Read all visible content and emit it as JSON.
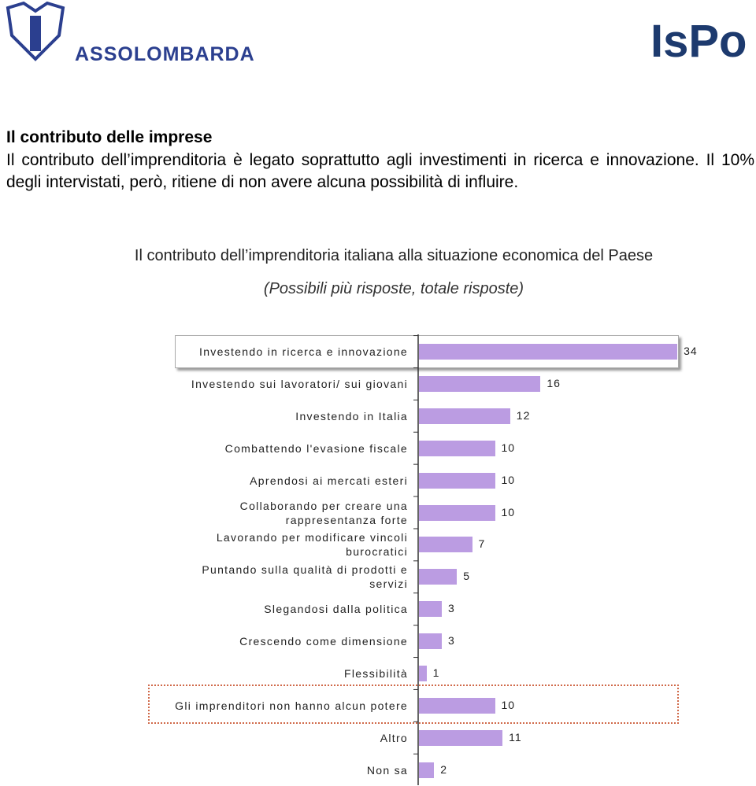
{
  "logos": {
    "left": "ASSOLOMBARDA",
    "right": "IsPo"
  },
  "section": {
    "title": "Il contributo delle imprese",
    "text": "Il contributo dell’imprenditoria è legato soprattutto agli investimenti in ricerca e innovazione. Il 10% degli intervistati, però, ritiene di non avere alcuna possibilità di influire."
  },
  "chart_data": {
    "type": "bar",
    "orientation": "horizontal",
    "title": "Il contributo dell’imprenditoria italiana alla situazione economica del Paese",
    "subtitle": "(Possibili più risposte, totale risposte)",
    "categories": [
      "Investendo in ricerca e innovazione",
      "Investendo sui lavoratori/ sui giovani",
      "Investendo in Italia",
      "Combattendo l'evasione fiscale",
      "Aprendosi ai mercati esteri",
      "Collaborando per creare una rappresentanza forte",
      "Lavorando per modificare vincoli burocratici",
      "Puntando sulla qualità di prodotti e servizi",
      "Slegandosi dalla politica",
      "Crescendo come dimensione",
      "Flessibilità",
      "Gli imprenditori non hanno alcun potere",
      "Altro",
      "Non sa"
    ],
    "values": [
      34,
      16,
      12,
      10,
      10,
      10,
      7,
      5,
      3,
      3,
      1,
      10,
      11,
      2
    ],
    "color": "#bb9ce2",
    "xlim": [
      0,
      40
    ]
  }
}
